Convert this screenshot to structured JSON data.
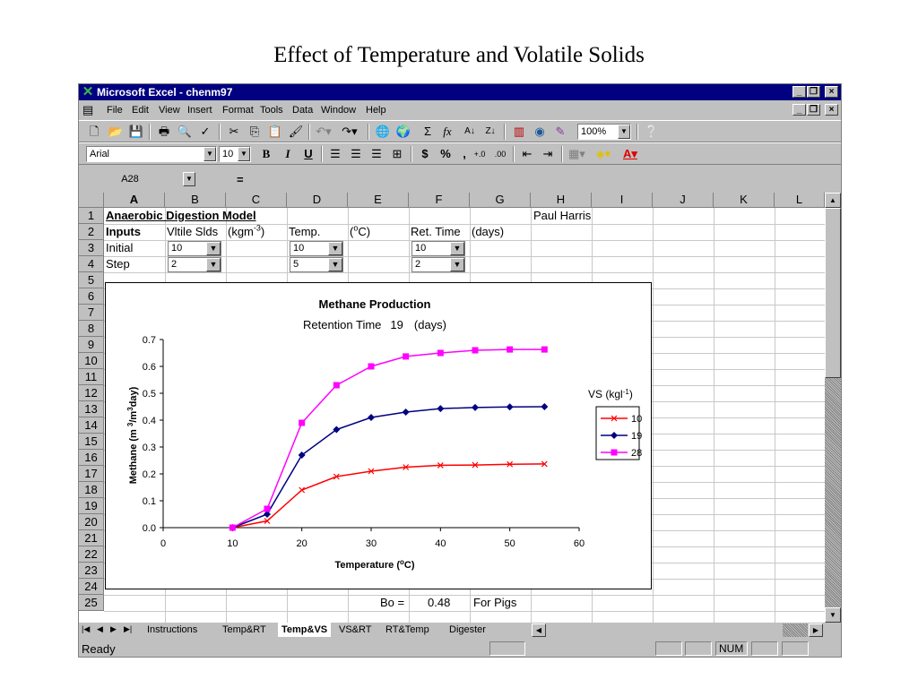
{
  "slide": {
    "title": "Effect of Temperature and Volatile Solids"
  },
  "window": {
    "title": "Microsoft Excel - chenm97"
  },
  "menu": [
    "File",
    "Edit",
    "View",
    "Insert",
    "Format",
    "Tools",
    "Data",
    "Window",
    "Help"
  ],
  "toolbar": {
    "zoom": "100%"
  },
  "format": {
    "font": "Arial",
    "size": "10"
  },
  "formula": {
    "cell_ref": "A28",
    "equals": "="
  },
  "columns": [
    "A",
    "B",
    "C",
    "D",
    "E",
    "F",
    "G",
    "H",
    "I",
    "J",
    "K",
    "L"
  ],
  "rows": [
    "1",
    "2",
    "3",
    "4",
    "5",
    "6",
    "7",
    "8",
    "9",
    "10",
    "11",
    "12",
    "13",
    "14",
    "15",
    "16",
    "17",
    "18",
    "19",
    "20",
    "21",
    "22",
    "23",
    "24",
    "25"
  ],
  "cells": {
    "a1": "Anaerobic Digestion Model",
    "h1": "Paul Harris",
    "a2": "Inputs",
    "b2": "Vltile Slds",
    "c2_prefix": "(kgm",
    "c2_sup": "-3",
    "c2_suffix": ")",
    "d2": "Temp.",
    "e2_prefix": "(",
    "e2_sup": "o",
    "e2_suffix": "C)",
    "f2": "Ret. Time",
    "g2": "(days)",
    "a3": "Initial",
    "b3": "10",
    "d3": "10",
    "f3": "10",
    "a4": "Step",
    "b4": "2",
    "d4": "5",
    "f4": "2",
    "e25": "Bo =",
    "f25": "0.48",
    "g25": "For Pigs"
  },
  "chart_data": {
    "type": "line",
    "title": "Methane Production",
    "subtitle_prefix": "Retention Time",
    "subtitle_value": "19",
    "subtitle_suffix": "(days)",
    "xlabel_prefix": "Temperature (",
    "xlabel_sup": "o",
    "xlabel_suffix": "C)",
    "ylabel_prefix": "Methane (m ",
    "ylabel_sup1": "3",
    "ylabel_mid": "/m",
    "ylabel_sup2": "3",
    "ylabel_suffix": "day)",
    "xlim": [
      0,
      60
    ],
    "ylim": [
      0,
      0.7
    ],
    "xticks": [
      "0",
      "10",
      "20",
      "30",
      "40",
      "50",
      "60"
    ],
    "yticks": [
      "0.0",
      "0.1",
      "0.2",
      "0.3",
      "0.4",
      "0.5",
      "0.6",
      "0.7"
    ],
    "legend_title_prefix": "VS (kgl",
    "legend_title_sup": "-1",
    "legend_title_suffix": ")",
    "legend_position": "right",
    "x": [
      10,
      15,
      20,
      25,
      30,
      35,
      40,
      45,
      50,
      55
    ],
    "series": [
      {
        "name": "10",
        "color": "#ff0000",
        "marker": "x",
        "values": [
          0.0,
          0.025,
          0.14,
          0.19,
          0.21,
          0.225,
          0.232,
          0.233,
          0.236,
          0.237
        ]
      },
      {
        "name": "19",
        "color": "#000080",
        "marker": "diamond",
        "values": [
          0.0,
          0.05,
          0.27,
          0.365,
          0.41,
          0.43,
          0.443,
          0.447,
          0.449,
          0.45
        ]
      },
      {
        "name": "28",
        "color": "#ff00ff",
        "marker": "square",
        "values": [
          0.0,
          0.07,
          0.39,
          0.53,
          0.6,
          0.637,
          0.65,
          0.66,
          0.663,
          0.663
        ]
      }
    ]
  },
  "sheet_tabs": [
    "Instructions",
    "Temp&RT",
    "Temp&VS",
    "VS&RT",
    "RT&Temp",
    "Digester"
  ],
  "active_tab": "Temp&VS",
  "status": {
    "ready": "Ready",
    "num": "NUM"
  }
}
